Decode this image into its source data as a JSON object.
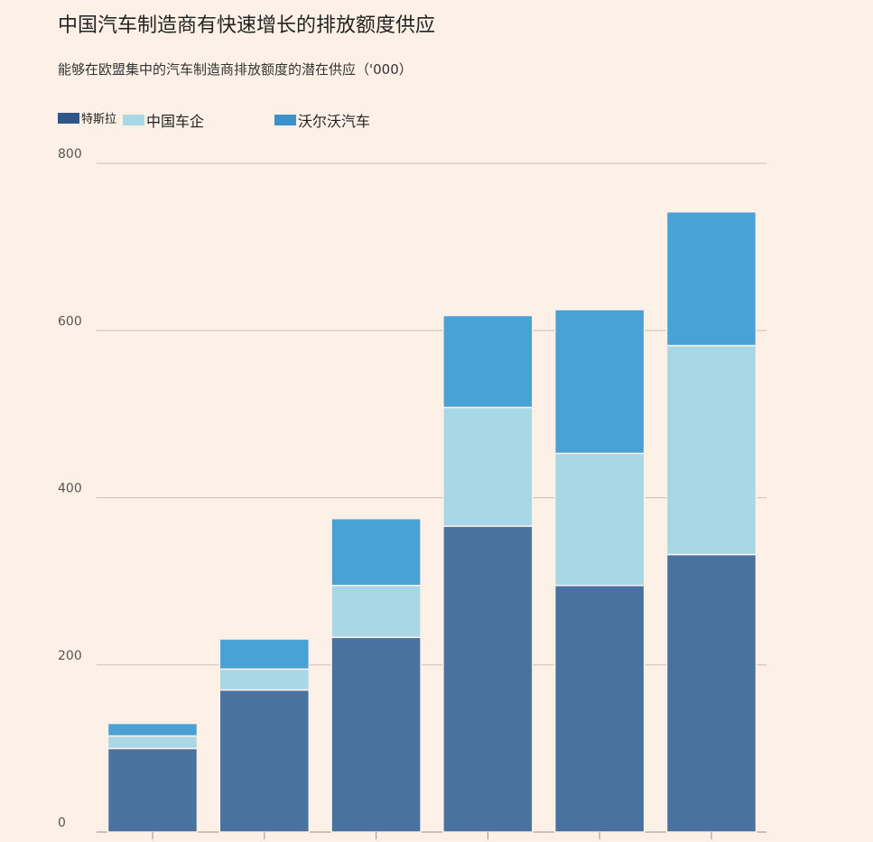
{
  "title": "中国汽车制造商有快速增长的排放额度供应",
  "subtitle": "能够在欧盟集中的汽车制造商排放额度的潜在供应（'000）",
  "legend": [
    {
      "label": "特斯拉",
      "color": "#2f5687"
    },
    {
      "label": "中国车企",
      "color": "#a8d7e6"
    },
    {
      "label": "沃尔沃汽车",
      "color": "#3a92c9"
    }
  ],
  "chart_data": {
    "type": "bar",
    "stacked": true,
    "title": "中国汽车制造商有快速增长的排放额度供应",
    "subtitle": "能够在欧盟集中的汽车制造商排放额度的潜在供应（'000）",
    "categories": [
      "",
      "",
      "",
      "",
      "",
      ""
    ],
    "series": [
      {
        "name": "特斯拉",
        "color": "#4a72a0",
        "values": [
          100,
          170,
          233,
          366,
          295,
          332
        ]
      },
      {
        "name": "中国车企",
        "color": "#a8d7e6",
        "values": [
          15,
          25,
          62,
          142,
          158,
          250
        ]
      },
      {
        "name": "沃尔沃汽车",
        "color": "#4aa2d4",
        "values": [
          15,
          36,
          80,
          110,
          172,
          160
        ]
      }
    ],
    "ylim": [
      0,
      800
    ],
    "yticks": [
      0,
      200,
      400,
      600,
      800
    ],
    "grid": true,
    "legend_position": "top-left"
  }
}
